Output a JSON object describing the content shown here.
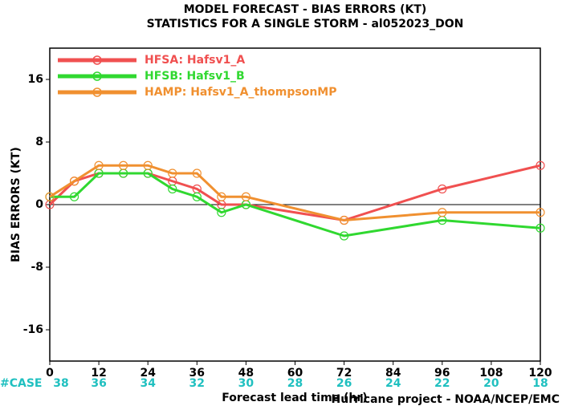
{
  "chart_data": {
    "type": "line",
    "title": "MODEL FORECAST - BIAS ERRORS (KT)",
    "subtitle": "STATISTICS FOR A SINGLE STORM - al052023_DON",
    "y_label": "BIAS ERRORS (KT)",
    "x_label": "Forecast lead time (hr)",
    "footer": "Hurricane project - NOAA/NCEP/EMC",
    "case_label": "#CASE",
    "cases": [
      38,
      36,
      34,
      32,
      30,
      28,
      26,
      24,
      22,
      20,
      18
    ],
    "x": [
      0,
      6,
      12,
      18,
      24,
      30,
      36,
      42,
      48,
      72,
      96,
      120
    ],
    "xlim": [
      0,
      120
    ],
    "xticks": [
      0,
      12,
      24,
      36,
      48,
      60,
      72,
      84,
      96,
      108,
      120
    ],
    "ylim": [
      -20,
      20
    ],
    "yticks": [
      -16,
      -8,
      0,
      8,
      16
    ],
    "series": [
      {
        "name": "HFSA: Hafsv1_A",
        "color": "#f05050",
        "values": [
          0,
          3,
          4,
          4,
          4,
          3,
          2,
          0,
          0,
          -2,
          2,
          5
        ]
      },
      {
        "name": "HFSB: Hafsv1_B",
        "color": "#30d830",
        "values": [
          1,
          1,
          4,
          4,
          4,
          2,
          1,
          -1,
          0,
          -4,
          -2,
          -3
        ]
      },
      {
        "name": "HAMP: Hafsv1_A_thompsonMP",
        "color": "#f09030",
        "values": [
          1,
          3,
          5,
          5,
          5,
          4,
          4,
          1,
          1,
          -2,
          -1,
          -1
        ]
      }
    ]
  }
}
